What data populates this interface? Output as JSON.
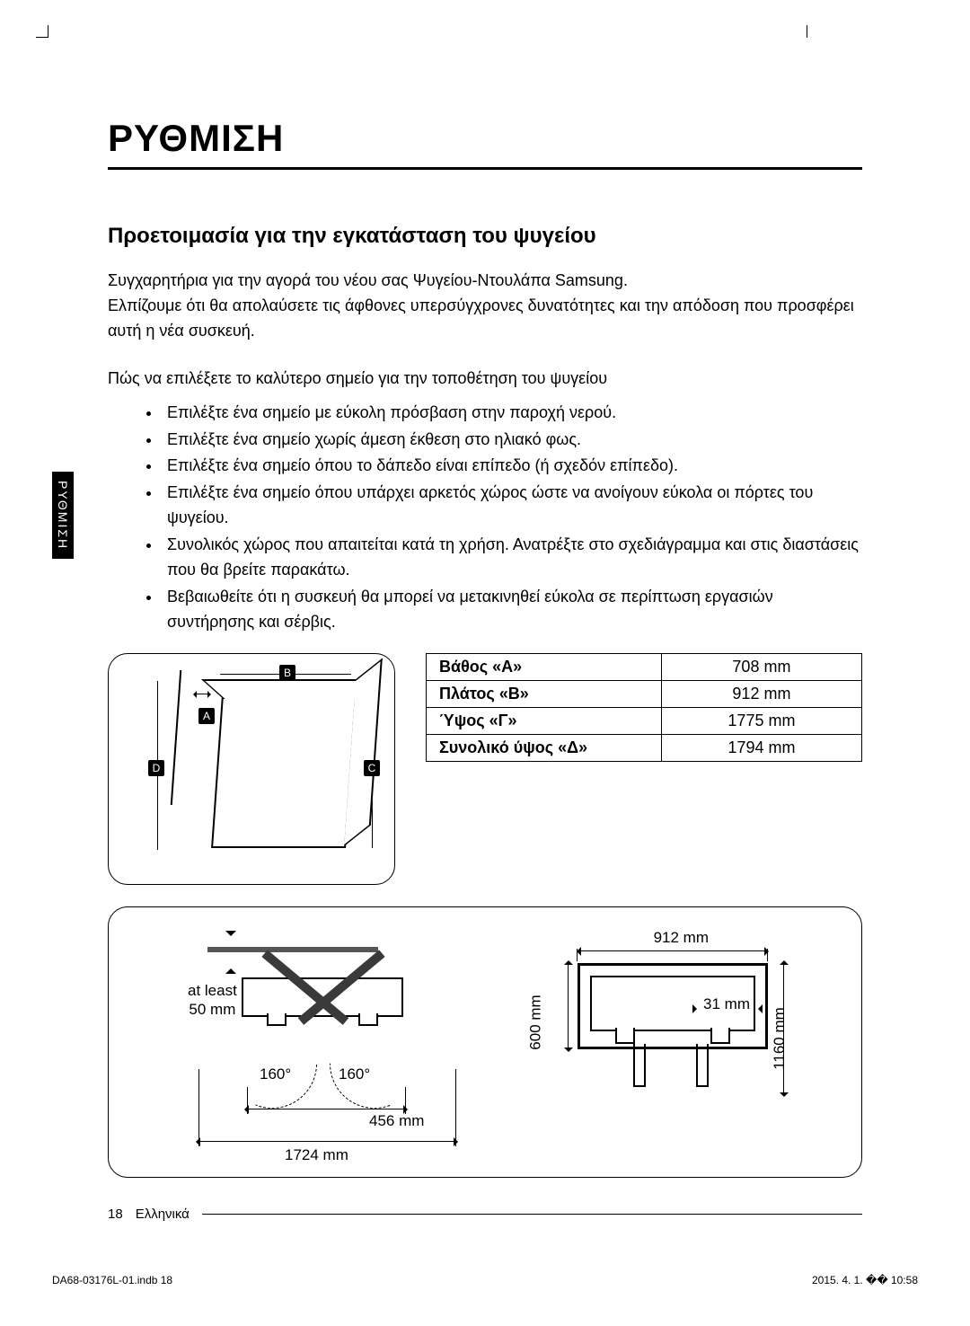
{
  "title": "ΡΥΘΜΙΣΗ",
  "sideTab": "ΡΥΘΜΙΣΗ",
  "subtitle": "Προετοιμασία για την εγκατάσταση του ψυγείου",
  "intro": "Συγχαρητήρια για την αγορά του νέου σας Ψυγείου-Ντουλάπα Samsung.\nΕλπίζουμε ότι θα απολαύσετε τις άφθονες υπερσύγχρονες δυνατότητες και την απόδοση που προσφέρει αυτή η νέα συσκευή.",
  "howToHeading": "Πώς να επιλέξετε το καλύτερο σημείο για την τοποθέτηση του ψυγείου",
  "bullets": [
    "Επιλέξτε ένα σημείο με εύκολη πρόσβαση στην παροχή νερού.",
    "Επιλέξτε ένα σημείο χωρίς άμεση έκθεση στο ηλιακό φως.",
    "Επιλέξτε ένα σημείο όπου το δάπεδο είναι επίπεδο (ή σχεδόν επίπεδο).",
    "Επιλέξτε ένα σημείο όπου υπάρχει αρκετός χώρος ώστε να ανοίγουν εύκολα οι πόρτες του ψυγείου.",
    "Συνολικός χώρος που απαιτείται κατά τη χρήση. Ανατρέξτε στο σχεδιάγραμμα και στις διαστάσεις που θα βρείτε παρακάτω.",
    "Βεβαιωθείτε ότι η συσκευή θα μπορεί να μετακινηθεί εύκολα σε περίπτωση εργασιών συντήρησης και σέρβις."
  ],
  "fig1Labels": {
    "A": "A",
    "B": "B",
    "C": "C",
    "D": "D"
  },
  "dimTable": {
    "rows": [
      {
        "label": "Βάθος «A»",
        "value": "708 mm"
      },
      {
        "label": "Πλάτος «B»",
        "value": "912 mm"
      },
      {
        "label": "Ύψος «Γ»",
        "value": "1775 mm"
      },
      {
        "label": "Συνολικό ύψος «Δ»",
        "value": "1794 mm"
      }
    ]
  },
  "fig2": {
    "atLeast": "at least\n50 mm",
    "angleL": "160°",
    "angleR": "160°",
    "d456": "456 mm",
    "d1724": "1724 mm",
    "d912": "912 mm",
    "d600": "600 mm",
    "d31": "31 mm",
    "d1160": "1160 mm"
  },
  "footer": {
    "pageNum": "18",
    "lang": "Ελληνικά"
  },
  "print": {
    "left": "DA68-03176L-01.indb   18",
    "right": "2015. 4. 1.   �� 10:58"
  }
}
